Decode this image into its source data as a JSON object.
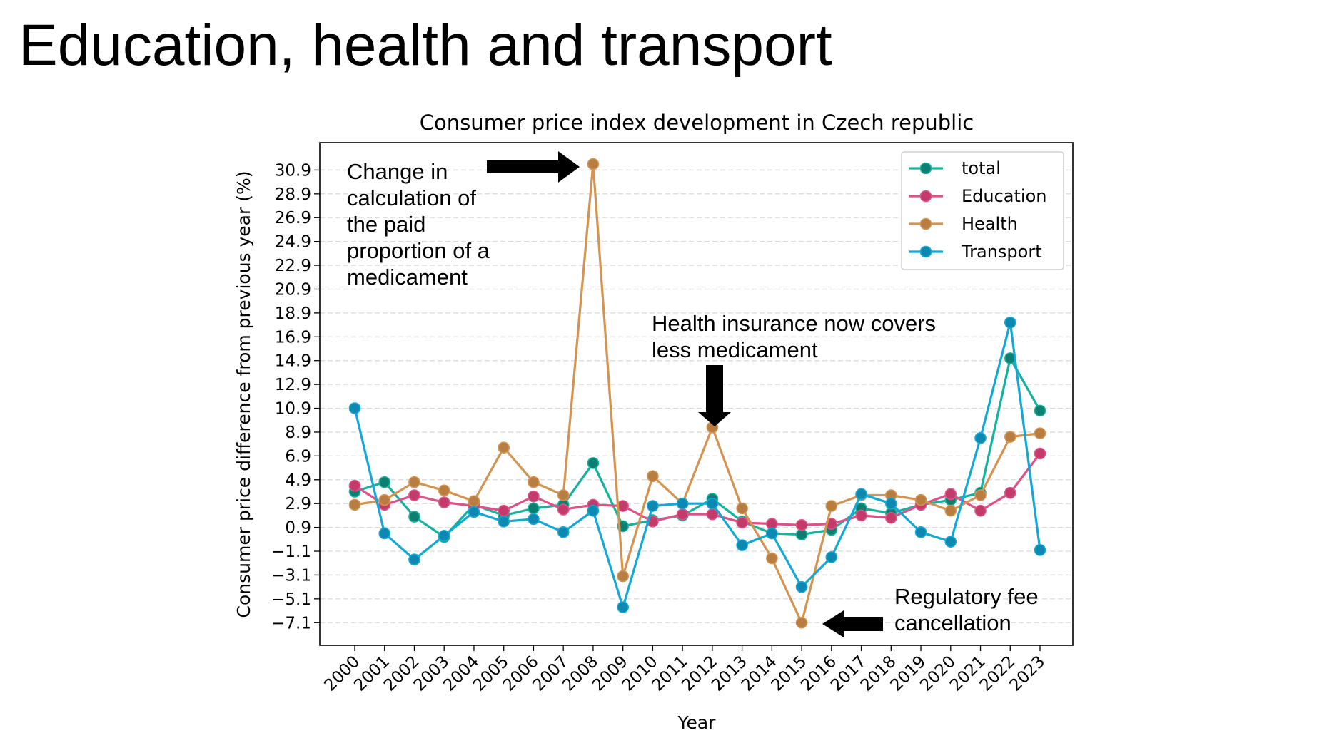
{
  "page": {
    "title": "Education, health and transport"
  },
  "annotations": {
    "a2008": "Change in\ncalculation of\nthe paid\nproportion of a\nmedicament",
    "a2012": "Health insurance now covers\nless medicament",
    "a2015": "Regulatory fee\ncancellation"
  },
  "chart_data": {
    "type": "line",
    "title": "Consumer price index development in Czech republic",
    "xlabel": "Year",
    "ylabel": "Consumer price difference from previous year (%)",
    "categories": [
      "2000",
      "2001",
      "2002",
      "2003",
      "2004",
      "2005",
      "2006",
      "2007",
      "2008",
      "2009",
      "2010",
      "2011",
      "2012",
      "2013",
      "2014",
      "2015",
      "2016",
      "2017",
      "2018",
      "2019",
      "2020",
      "2021",
      "2022",
      "2023"
    ],
    "yticks": [
      -7.1,
      -5.1,
      -3.1,
      -1.1,
      0.9,
      2.9,
      4.9,
      6.9,
      8.9,
      10.9,
      12.9,
      14.9,
      16.9,
      18.9,
      20.9,
      22.9,
      24.9,
      26.9,
      28.9,
      30.9
    ],
    "ytick_labels": [
      "−7.1",
      "−5.1",
      "−3.1",
      "−1.1",
      "0.9",
      "2.9",
      "4.9",
      "6.9",
      "8.9",
      "10.9",
      "12.9",
      "14.9",
      "16.9",
      "18.9",
      "20.9",
      "22.9",
      "24.9",
      "26.9",
      "28.9",
      "30.9"
    ],
    "ylim": [
      -9.0,
      33.2
    ],
    "grid": "horizontal dashed",
    "legend_position": "top-right",
    "series": [
      {
        "name": "total",
        "color": "#14b39e",
        "marker": "#0d7f70",
        "values": [
          3.9,
          4.7,
          1.8,
          0.1,
          2.8,
          1.9,
          2.5,
          2.8,
          6.3,
          1.0,
          1.5,
          1.9,
          3.3,
          1.4,
          0.4,
          0.3,
          0.7,
          2.5,
          2.1,
          2.8,
          3.2,
          3.8,
          15.1,
          10.7
        ]
      },
      {
        "name": "Education",
        "color": "#e05287",
        "marker": "#c23b6b",
        "values": [
          4.4,
          2.8,
          3.6,
          3.0,
          2.7,
          2.3,
          3.5,
          2.4,
          2.8,
          2.7,
          1.4,
          2.0,
          2.0,
          1.3,
          1.2,
          1.1,
          1.2,
          1.9,
          1.7,
          2.8,
          3.7,
          2.3,
          3.8,
          7.1
        ]
      },
      {
        "name": "Health",
        "color": "#d49350",
        "marker": "#b87d41",
        "values": [
          2.8,
          3.2,
          4.7,
          4.0,
          3.1,
          7.6,
          4.7,
          3.6,
          31.4,
          -3.2,
          5.2,
          2.9,
          9.3,
          2.5,
          -1.7,
          -7.1,
          2.7,
          3.6,
          3.6,
          3.2,
          2.3,
          3.6,
          8.5,
          8.8
        ]
      },
      {
        "name": "Transport",
        "color": "#12a8d8",
        "marker": "#0d88b1",
        "values": [
          10.9,
          0.4,
          -1.8,
          0.2,
          2.2,
          1.4,
          1.6,
          0.5,
          2.3,
          -5.8,
          2.7,
          2.9,
          2.9,
          -0.6,
          0.4,
          -4.1,
          -1.6,
          3.7,
          2.9,
          0.5,
          -0.3,
          8.4,
          18.1,
          -1.0
        ]
      }
    ]
  }
}
